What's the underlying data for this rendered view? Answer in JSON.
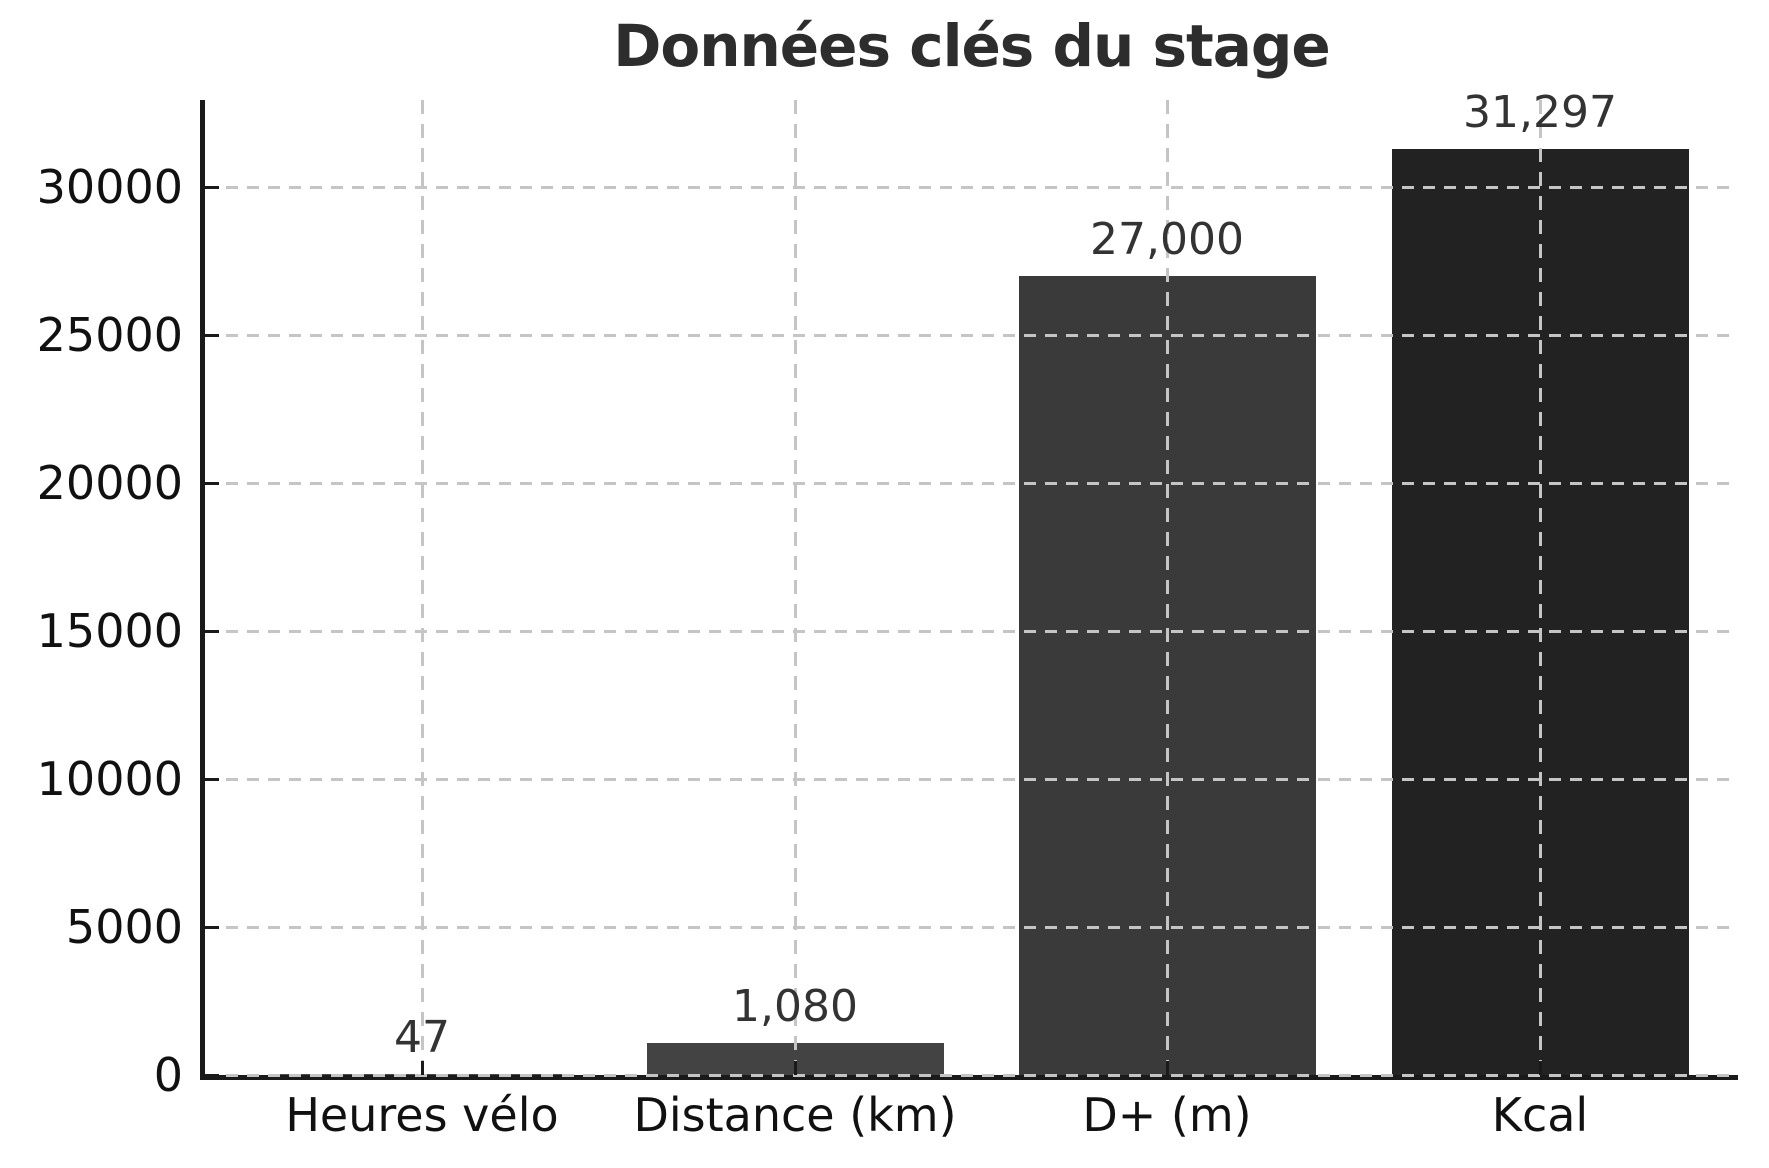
{
  "title": "Données clés du stage",
  "chart_data": {
    "type": "bar",
    "title": "Données clés du stage",
    "categories": [
      "Heures vélo",
      "Distance (km)",
      "D+ (m)",
      "Kcal"
    ],
    "values": [
      47,
      1080,
      27000,
      31297
    ],
    "value_labels": [
      "47",
      "1,080",
      "27,000",
      "31,297"
    ],
    "bar_colors": [
      "#4d4d4d",
      "#434343",
      "#3a3a3a",
      "#222222"
    ],
    "xlabel": "",
    "ylabel": "",
    "ylim": [
      0,
      32940
    ],
    "yticks": [
      0,
      5000,
      10000,
      15000,
      20000,
      25000,
      30000
    ],
    "ytick_labels": [
      "0",
      "5000",
      "10000",
      "15000",
      "20000",
      "25000",
      "30000"
    ],
    "grid": "dashed, horizontal and vertical, drawn over bars",
    "legend": "none"
  },
  "colors": {
    "background": "#ffffff",
    "axis": "#1a1a1a",
    "grid": "#c5c5c5",
    "title_text": "#2d2d2d",
    "tick_text": "#111111",
    "value_text": "#333333"
  }
}
